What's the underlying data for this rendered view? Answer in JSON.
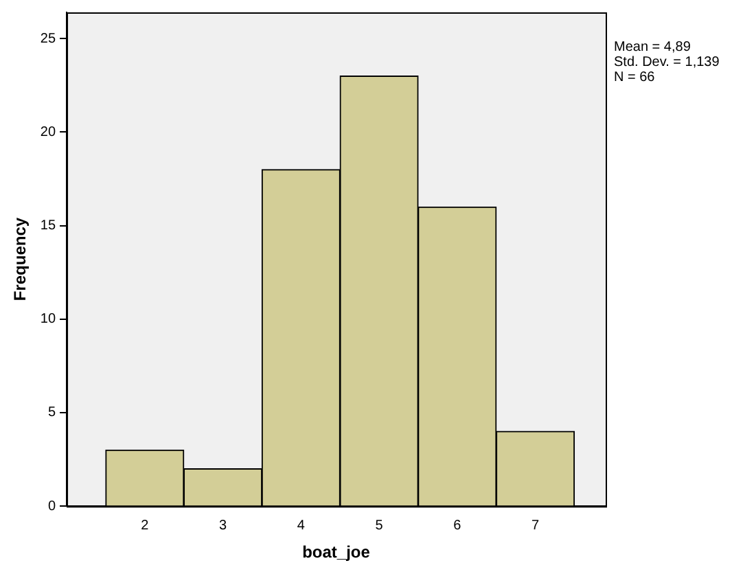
{
  "chart_data": {
    "type": "histogram",
    "xlabel": "boat_joe",
    "ylabel": "Frequency",
    "bins": [
      1.5,
      2.5,
      3.5,
      4.5,
      5.5,
      6.5,
      7.5
    ],
    "values": [
      3,
      2,
      18,
      23,
      16,
      4
    ],
    "color": "#d3ce97",
    "xlim": [
      1,
      7.9
    ],
    "ylim": [
      0,
      26.4
    ],
    "xticks": [
      2,
      3,
      4,
      5,
      6,
      7
    ],
    "yticks": [
      0,
      5,
      10,
      15,
      20,
      25
    ],
    "annotations": [
      "Mean = 4,89",
      "Std. Dev. = 1,139",
      "N = 66"
    ]
  }
}
